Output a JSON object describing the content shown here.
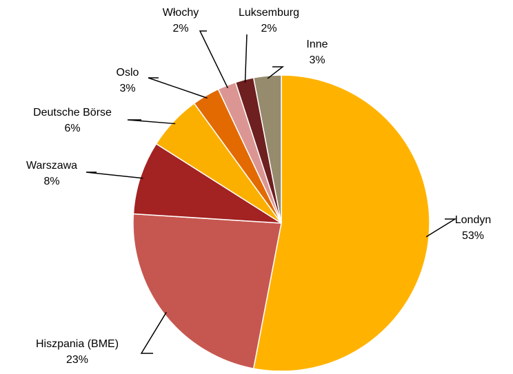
{
  "chart_data": {
    "type": "pie",
    "categories": [
      "Londyn",
      "Hiszpania (BME)",
      "Warszawa",
      "Deutsche Börse",
      "Oslo",
      "Włochy",
      "Luksemburg",
      "Inne"
    ],
    "values": [
      53,
      23,
      8,
      6,
      3,
      2,
      2,
      3
    ],
    "value_labels": [
      "53%",
      "23%",
      "8%",
      "6%",
      "3%",
      "2%",
      "2%",
      "3%"
    ],
    "colors": [
      "#FFB300",
      "#C65750",
      "#A32222",
      "#FBB000",
      "#E26A00",
      "#DB9693",
      "#6E1F1F",
      "#968B6D"
    ]
  }
}
